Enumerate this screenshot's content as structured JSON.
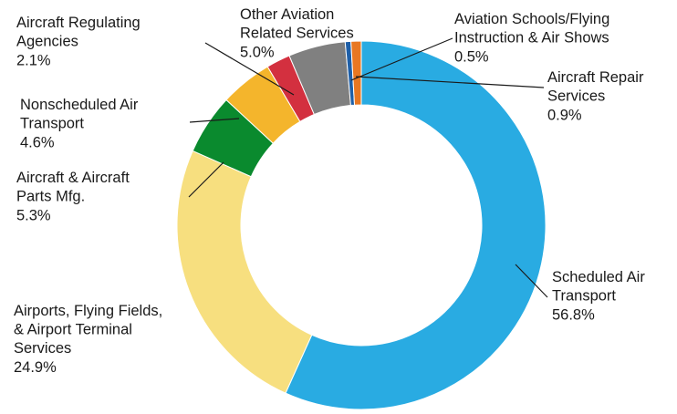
{
  "chart_data": {
    "type": "donut",
    "categories": [
      "Scheduled Air Transport",
      "Airports, Flying Fields, & Airport Terminal Services",
      "Aircraft & Aircraft Parts Mfg.",
      "Nonscheduled Air Transport",
      "Aircraft Regulating Agencies",
      "Other Aviation Related Services",
      "Aviation Schools/Flying Instruction & Air Shows",
      "Aircraft Repair Services"
    ],
    "values": [
      56.8,
      24.9,
      5.3,
      4.6,
      2.1,
      5.0,
      0.5,
      0.9
    ],
    "value_labels": [
      "56.8%",
      "24.9%",
      "5.3%",
      "4.6%",
      "2.1%",
      "5.0%",
      "0.5%",
      "0.9%"
    ],
    "colors": [
      "#29abe2",
      "#f7df7f",
      "#0a8a2e",
      "#f4b52c",
      "#d3303f",
      "#808080",
      "#1e5fa8",
      "#e87722"
    ]
  }
}
